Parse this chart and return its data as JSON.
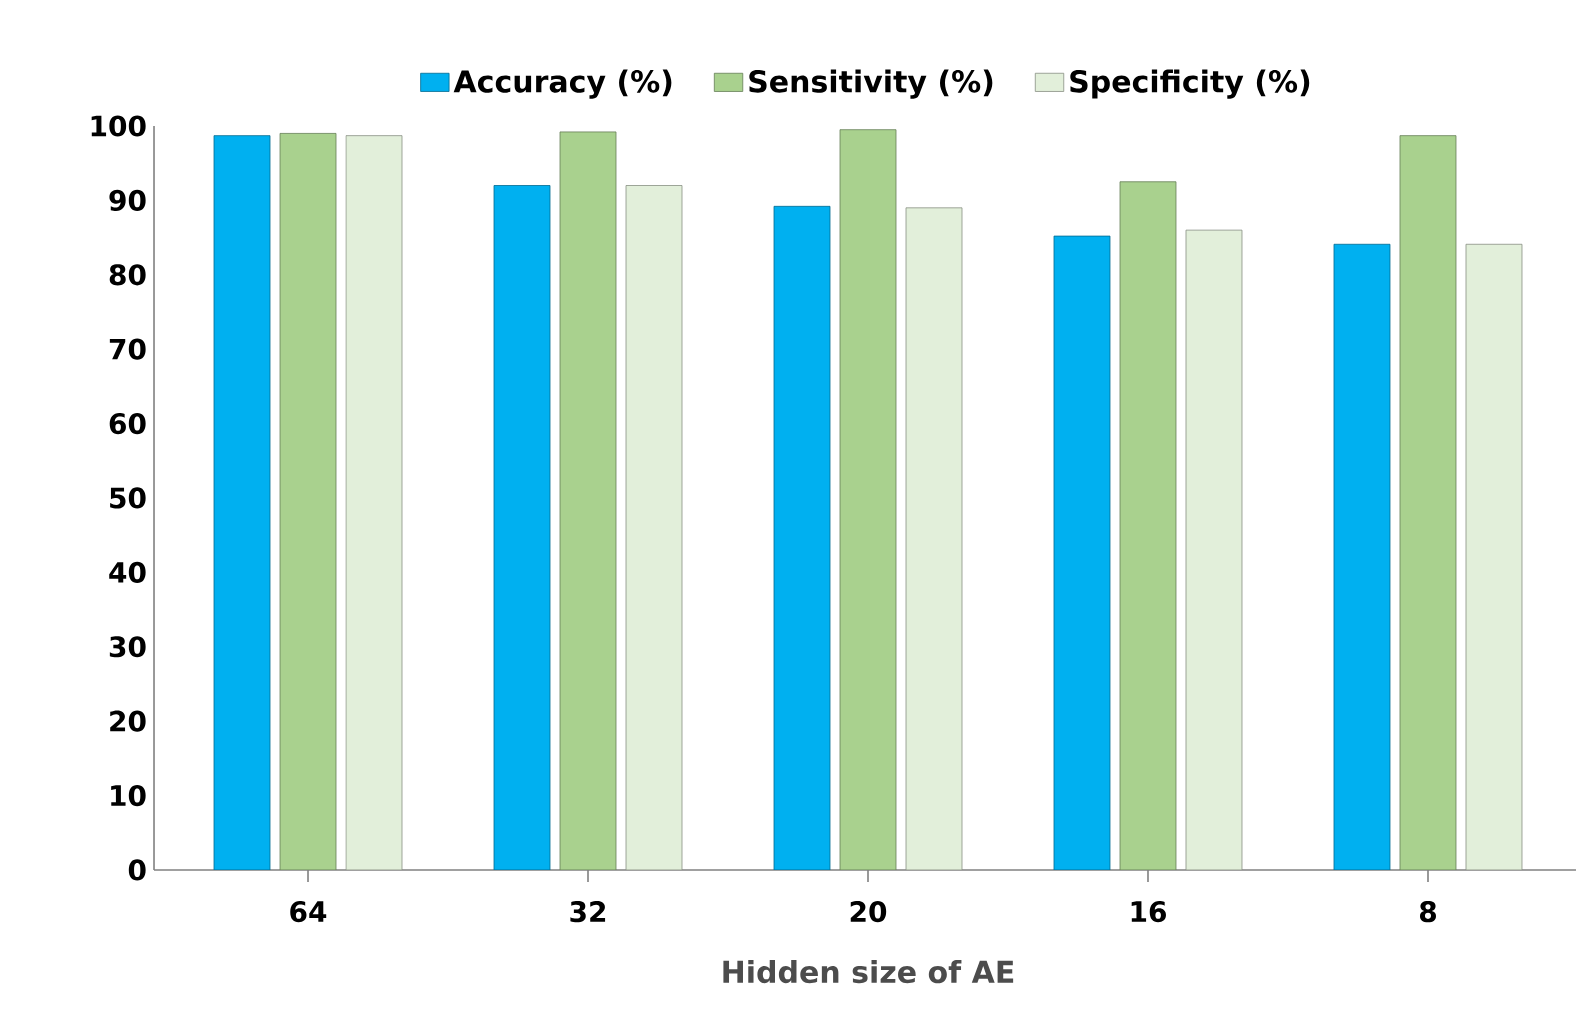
{
  "chart_data": {
    "type": "bar",
    "xlabel": "Hidden size of AE",
    "categories": [
      "64",
      "32",
      "20",
      "16",
      "8"
    ],
    "series": [
      {
        "name": "Accuracy (%)",
        "color": "#00b0f0",
        "values": [
          98.7,
          92,
          89.2,
          85.2,
          84.1
        ]
      },
      {
        "name": "Sensitivity (%)",
        "color": "#a9d18e",
        "values": [
          99,
          99.2,
          99.5,
          92.5,
          98.7
        ]
      },
      {
        "name": "Specificity (%)",
        "color": "#e2efda",
        "values": [
          98.7,
          92,
          89,
          86,
          84.1
        ]
      }
    ],
    "ylim": [
      0,
      100
    ],
    "yticks": [
      0,
      10,
      20,
      30,
      40,
      50,
      60,
      70,
      80,
      90,
      100
    ],
    "legend": "top"
  }
}
